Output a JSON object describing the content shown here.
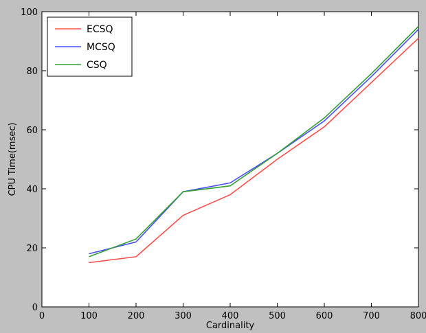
{
  "chart_data": {
    "type": "line",
    "xlabel": "Cardinality",
    "ylabel": "CPU Time(msec)",
    "xlim": [
      0,
      800
    ],
    "ylim": [
      0,
      100
    ],
    "xticks": [
      0,
      100,
      200,
      300,
      400,
      500,
      600,
      700,
      800
    ],
    "yticks": [
      0,
      20,
      40,
      60,
      80,
      100
    ],
    "grid": false,
    "legend_position": "top-left",
    "x": [
      100,
      200,
      300,
      400,
      500,
      600,
      700,
      800
    ],
    "series": [
      {
        "name": "ECSQ",
        "color": "#ff4d4d",
        "values": [
          15,
          17,
          31,
          38,
          50,
          61,
          76,
          91
        ]
      },
      {
        "name": "MCSQ",
        "color": "#4d4dff",
        "values": [
          18,
          22,
          39,
          42,
          52,
          63,
          78,
          94
        ]
      },
      {
        "name": "CSQ",
        "color": "#33a033",
        "values": [
          17,
          23,
          39,
          41,
          52,
          64,
          79,
          95
        ]
      }
    ]
  }
}
